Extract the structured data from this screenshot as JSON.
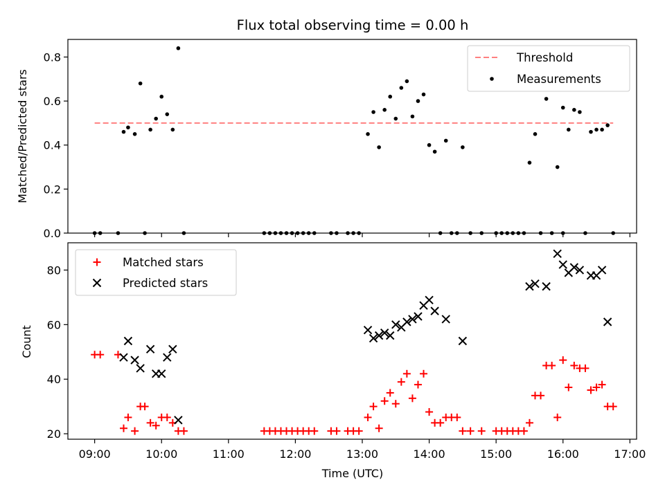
{
  "chart_data": {
    "title": "Flux total observing time = 0.00 h",
    "xlabel": "Time (UTC)",
    "x_unit": "hours UTC",
    "x_ticks": [
      "09:00",
      "10:00",
      "11:00",
      "12:00",
      "13:00",
      "14:00",
      "15:00",
      "16:00",
      "17:00"
    ],
    "xlim": [
      "08:36",
      "17:06"
    ],
    "colors": {
      "threshold": "#ff7f7f",
      "measurements": "#000000",
      "matched": "#ff0000",
      "predicted": "#000000"
    },
    "panels": [
      {
        "type": "scatter",
        "ylabel": "Matched/Predicted stars",
        "ylim": [
          0,
          0.88
        ],
        "y_ticks": [
          "0.0",
          "0.2",
          "0.4",
          "0.6",
          "0.8"
        ],
        "legend": {
          "position": "top-right"
        },
        "threshold": {
          "name": "Threshold",
          "value": 0.5,
          "x_range": [
            "09:00",
            "16:45"
          ]
        },
        "series": [
          {
            "name": "Measurements",
            "marker": "dot",
            "points": [
              [
                "09:00",
                0.0
              ],
              [
                "09:05",
                0.0
              ],
              [
                "09:21",
                0.0
              ],
              [
                "09:26",
                0.46
              ],
              [
                "09:30",
                0.48
              ],
              [
                "09:36",
                0.45
              ],
              [
                "09:41",
                0.68
              ],
              [
                "09:45",
                0.0
              ],
              [
                "09:50",
                0.47
              ],
              [
                "09:55",
                0.52
              ],
              [
                "10:00",
                0.62
              ],
              [
                "10:05",
                0.54
              ],
              [
                "10:10",
                0.47
              ],
              [
                "10:15",
                0.84
              ],
              [
                "10:20",
                0.0
              ],
              [
                "11:32",
                0.0
              ],
              [
                "11:37",
                0.0
              ],
              [
                "11:42",
                0.0
              ],
              [
                "11:47",
                0.0
              ],
              [
                "11:52",
                0.0
              ],
              [
                "11:57",
                0.0
              ],
              [
                "12:02",
                0.0
              ],
              [
                "12:07",
                0.0
              ],
              [
                "12:12",
                0.0
              ],
              [
                "12:17",
                0.0
              ],
              [
                "12:32",
                0.0
              ],
              [
                "12:37",
                0.0
              ],
              [
                "12:47",
                0.0
              ],
              [
                "12:52",
                0.0
              ],
              [
                "12:57",
                0.0
              ],
              [
                "13:05",
                0.45
              ],
              [
                "13:10",
                0.55
              ],
              [
                "13:15",
                0.39
              ],
              [
                "13:20",
                0.56
              ],
              [
                "13:25",
                0.62
              ],
              [
                "13:30",
                0.52
              ],
              [
                "13:35",
                0.66
              ],
              [
                "13:40",
                0.69
              ],
              [
                "13:45",
                0.53
              ],
              [
                "13:50",
                0.6
              ],
              [
                "13:55",
                0.63
              ],
              [
                "14:00",
                0.4
              ],
              [
                "14:05",
                0.37
              ],
              [
                "14:10",
                0.0
              ],
              [
                "14:15",
                0.42
              ],
              [
                "14:20",
                0.0
              ],
              [
                "14:25",
                0.0
              ],
              [
                "14:30",
                0.39
              ],
              [
                "14:37",
                0.0
              ],
              [
                "14:47",
                0.0
              ],
              [
                "15:00",
                0.0
              ],
              [
                "15:05",
                0.0
              ],
              [
                "15:10",
                0.0
              ],
              [
                "15:15",
                0.0
              ],
              [
                "15:20",
                0.0
              ],
              [
                "15:25",
                0.0
              ],
              [
                "15:30",
                0.32
              ],
              [
                "15:35",
                0.45
              ],
              [
                "15:40",
                0.0
              ],
              [
                "15:45",
                0.61
              ],
              [
                "15:50",
                0.0
              ],
              [
                "15:55",
                0.3
              ],
              [
                "16:00",
                0.0
              ],
              [
                "16:00",
                0.57
              ],
              [
                "16:05",
                0.47
              ],
              [
                "16:10",
                0.56
              ],
              [
                "16:15",
                0.55
              ],
              [
                "16:20",
                0.0
              ],
              [
                "16:25",
                0.46
              ],
              [
                "16:30",
                0.47
              ],
              [
                "16:35",
                0.47
              ],
              [
                "16:40",
                0.49
              ],
              [
                "16:45",
                0.0
              ]
            ]
          }
        ]
      },
      {
        "type": "scatter",
        "ylabel": "Count",
        "ylim": [
          18,
          90
        ],
        "y_ticks": [
          "20",
          "40",
          "60",
          "80"
        ],
        "legend": {
          "position": "top-left"
        },
        "series": [
          {
            "name": "Matched stars",
            "marker": "plus",
            "points": [
              [
                "09:00",
                49
              ],
              [
                "09:05",
                49
              ],
              [
                "09:21",
                49
              ],
              [
                "09:26",
                22
              ],
              [
                "09:30",
                26
              ],
              [
                "09:36",
                21
              ],
              [
                "09:41",
                30
              ],
              [
                "09:45",
                30
              ],
              [
                "09:50",
                24
              ],
              [
                "09:55",
                23
              ],
              [
                "10:00",
                26
              ],
              [
                "10:05",
                26
              ],
              [
                "10:10",
                24
              ],
              [
                "10:15",
                21
              ],
              [
                "10:20",
                21
              ],
              [
                "11:32",
                21
              ],
              [
                "11:37",
                21
              ],
              [
                "11:42",
                21
              ],
              [
                "11:47",
                21
              ],
              [
                "11:52",
                21
              ],
              [
                "11:57",
                21
              ],
              [
                "12:02",
                21
              ],
              [
                "12:07",
                21
              ],
              [
                "12:12",
                21
              ],
              [
                "12:17",
                21
              ],
              [
                "12:32",
                21
              ],
              [
                "12:37",
                21
              ],
              [
                "12:47",
                21
              ],
              [
                "12:52",
                21
              ],
              [
                "12:57",
                21
              ],
              [
                "13:05",
                26
              ],
              [
                "13:10",
                30
              ],
              [
                "13:15",
                22
              ],
              [
                "13:20",
                32
              ],
              [
                "13:25",
                35
              ],
              [
                "13:30",
                31
              ],
              [
                "13:35",
                39
              ],
              [
                "13:40",
                42
              ],
              [
                "13:45",
                33
              ],
              [
                "13:50",
                38
              ],
              [
                "13:55",
                42
              ],
              [
                "14:00",
                28
              ],
              [
                "14:05",
                24
              ],
              [
                "14:10",
                24
              ],
              [
                "14:15",
                26
              ],
              [
                "14:20",
                26
              ],
              [
                "14:25",
                26
              ],
              [
                "14:30",
                21
              ],
              [
                "14:37",
                21
              ],
              [
                "14:47",
                21
              ],
              [
                "15:00",
                21
              ],
              [
                "15:05",
                21
              ],
              [
                "15:10",
                21
              ],
              [
                "15:15",
                21
              ],
              [
                "15:20",
                21
              ],
              [
                "15:25",
                21
              ],
              [
                "15:30",
                24
              ],
              [
                "15:35",
                34
              ],
              [
                "15:40",
                34
              ],
              [
                "15:45",
                45
              ],
              [
                "15:50",
                45
              ],
              [
                "15:55",
                26
              ],
              [
                "16:00",
                47
              ],
              [
                "16:05",
                37
              ],
              [
                "16:10",
                45
              ],
              [
                "16:15",
                44
              ],
              [
                "16:20",
                44
              ],
              [
                "16:25",
                36
              ],
              [
                "16:30",
                37
              ],
              [
                "16:35",
                38
              ],
              [
                "16:40",
                30
              ],
              [
                "16:45",
                30
              ]
            ]
          },
          {
            "name": "Predicted stars",
            "marker": "x",
            "points": [
              [
                "09:26",
                48
              ],
              [
                "09:30",
                54
              ],
              [
                "09:36",
                47
              ],
              [
                "09:41",
                44
              ],
              [
                "09:50",
                51
              ],
              [
                "09:55",
                42
              ],
              [
                "10:00",
                42
              ],
              [
                "10:05",
                48
              ],
              [
                "10:10",
                51
              ],
              [
                "10:15",
                25
              ],
              [
                "13:05",
                58
              ],
              [
                "13:10",
                55
              ],
              [
                "13:15",
                56
              ],
              [
                "13:20",
                57
              ],
              [
                "13:25",
                56
              ],
              [
                "13:30",
                60
              ],
              [
                "13:35",
                59
              ],
              [
                "13:40",
                61
              ],
              [
                "13:45",
                62
              ],
              [
                "13:50",
                63
              ],
              [
                "13:55",
                67
              ],
              [
                "14:00",
                69
              ],
              [
                "14:05",
                65
              ],
              [
                "14:15",
                62
              ],
              [
                "14:30",
                54
              ],
              [
                "15:30",
                74
              ],
              [
                "15:35",
                75
              ],
              [
                "15:45",
                74
              ],
              [
                "15:55",
                86
              ],
              [
                "16:00",
                82
              ],
              [
                "16:05",
                79
              ],
              [
                "16:10",
                81
              ],
              [
                "16:15",
                80
              ],
              [
                "16:25",
                78
              ],
              [
                "16:30",
                78
              ],
              [
                "16:35",
                80
              ],
              [
                "16:40",
                61
              ]
            ]
          }
        ]
      }
    ]
  }
}
